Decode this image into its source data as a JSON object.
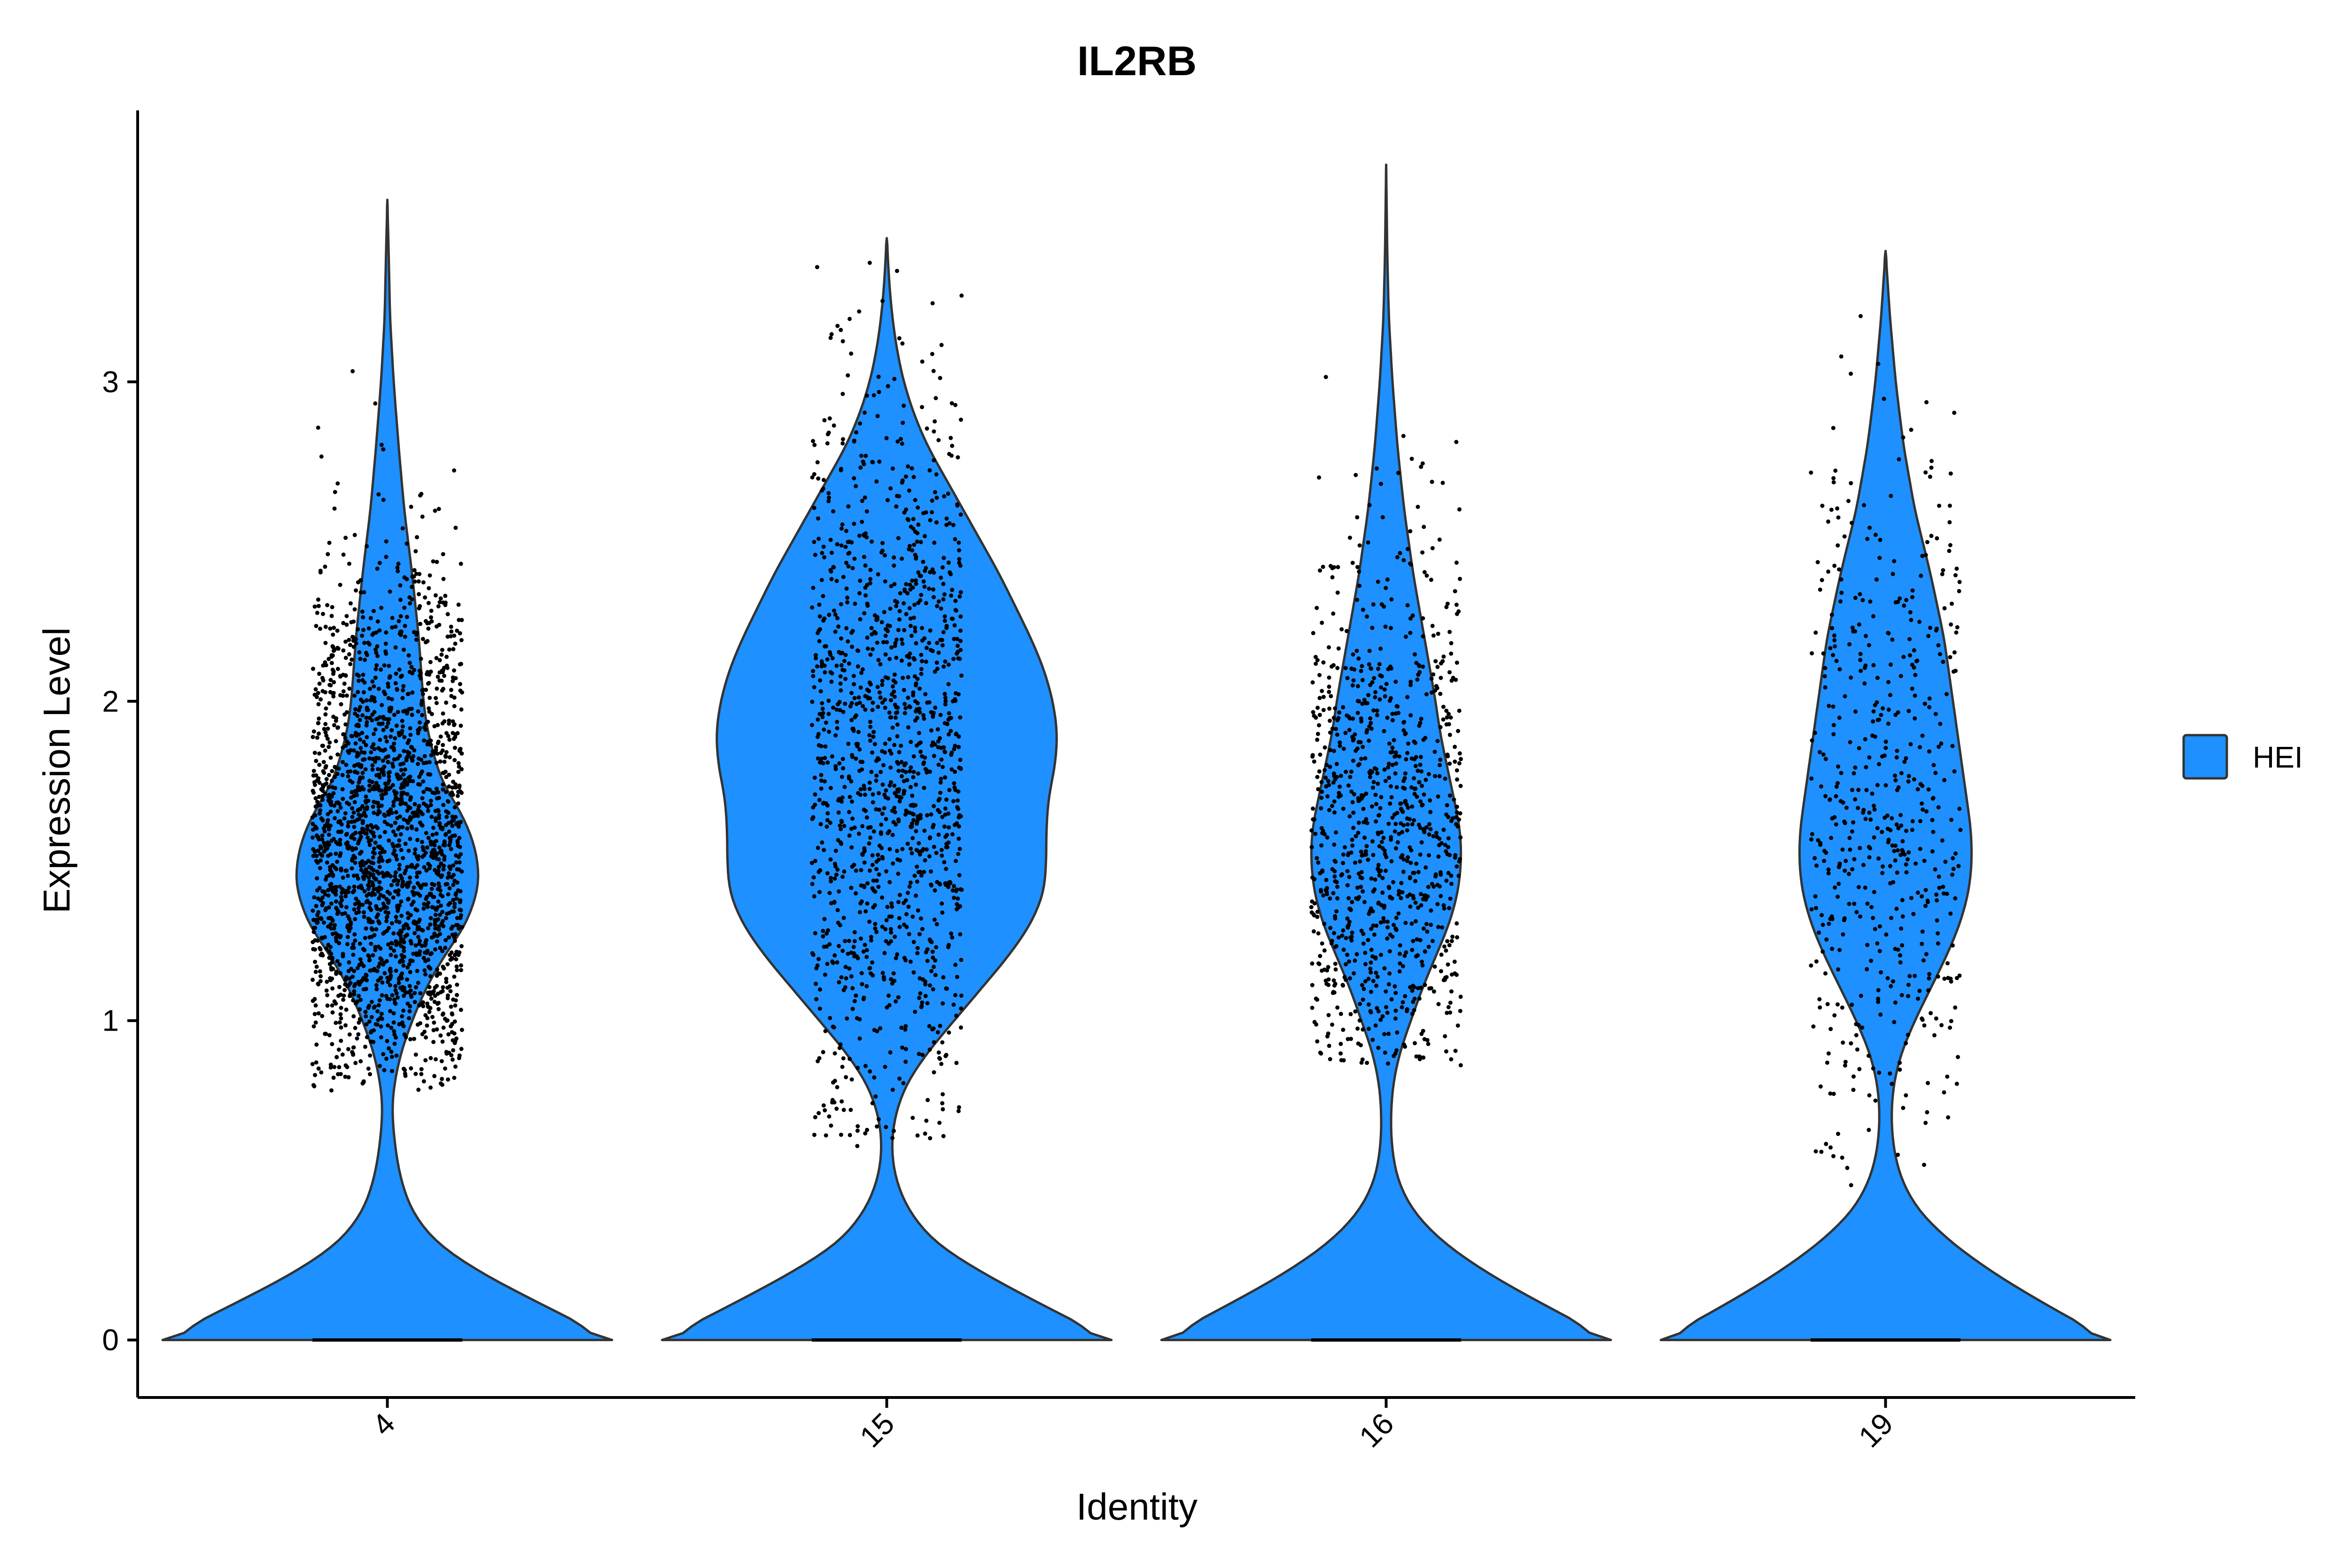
{
  "chart_data": {
    "type": "violin",
    "title": "IL2RB",
    "xlabel": "Identity",
    "ylabel": "Expression Level",
    "categories": [
      "4",
      "15",
      "16",
      "19"
    ],
    "yticks": [
      0,
      1,
      2,
      3
    ],
    "ylim": [
      -0.18,
      3.85
    ],
    "legend": {
      "placement": "right",
      "entries": [
        {
          "label": "HEI",
          "color": "#1E90FF"
        }
      ]
    },
    "fill_color": "#1E90FF",
    "grid": false,
    "x_tick_rotation": -45,
    "series": [
      {
        "category": "4",
        "max": 3.57,
        "density_profile": [
          [
            0,
            1.0
          ],
          [
            0.1,
            0.72
          ],
          [
            0.2,
            0.44
          ],
          [
            0.3,
            0.22
          ],
          [
            0.4,
            0.11
          ],
          [
            0.5,
            0.06
          ],
          [
            0.6,
            0.035
          ],
          [
            0.72,
            0.02
          ],
          [
            0.8,
            0.03
          ],
          [
            0.9,
            0.06
          ],
          [
            1.0,
            0.11
          ],
          [
            1.1,
            0.17
          ],
          [
            1.2,
            0.25
          ],
          [
            1.3,
            0.35
          ],
          [
            1.4,
            0.4
          ],
          [
            1.45,
            0.41
          ],
          [
            1.55,
            0.39
          ],
          [
            1.65,
            0.33
          ],
          [
            1.75,
            0.24
          ],
          [
            1.9,
            0.18
          ],
          [
            2.0,
            0.16
          ],
          [
            2.2,
            0.14
          ],
          [
            2.4,
            0.11
          ],
          [
            2.6,
            0.075
          ],
          [
            2.8,
            0.05
          ],
          [
            3.0,
            0.028
          ],
          [
            3.2,
            0.012
          ],
          [
            3.4,
            0.006
          ],
          [
            3.57,
            0.0
          ]
        ],
        "jitter_points": {
          "count": 2200,
          "range": [
            0.78,
            3.4
          ],
          "mode": 1.5,
          "spread": 0.45,
          "zero_count": 1
        }
      },
      {
        "category": "15",
        "max": 3.45,
        "density_profile": [
          [
            0,
            1.0
          ],
          [
            0.1,
            0.72
          ],
          [
            0.2,
            0.45
          ],
          [
            0.3,
            0.22
          ],
          [
            0.4,
            0.1
          ],
          [
            0.5,
            0.04
          ],
          [
            0.6,
            0.02
          ],
          [
            0.7,
            0.035
          ],
          [
            0.8,
            0.085
          ],
          [
            0.9,
            0.18
          ],
          [
            1.0,
            0.3
          ],
          [
            1.1,
            0.42
          ],
          [
            1.2,
            0.54
          ],
          [
            1.3,
            0.64
          ],
          [
            1.4,
            0.7
          ],
          [
            1.5,
            0.71
          ],
          [
            1.6,
            0.71
          ],
          [
            1.7,
            0.72
          ],
          [
            1.8,
            0.75
          ],
          [
            1.9,
            0.76
          ],
          [
            2.0,
            0.74
          ],
          [
            2.1,
            0.7
          ],
          [
            2.2,
            0.64
          ],
          [
            2.3,
            0.57
          ],
          [
            2.4,
            0.5
          ],
          [
            2.5,
            0.42
          ],
          [
            2.6,
            0.34
          ],
          [
            2.7,
            0.26
          ],
          [
            2.8,
            0.18
          ],
          [
            2.9,
            0.12
          ],
          [
            3.0,
            0.075
          ],
          [
            3.1,
            0.045
          ],
          [
            3.2,
            0.025
          ],
          [
            3.3,
            0.012
          ],
          [
            3.45,
            0.0
          ]
        ],
        "jitter_points": {
          "count": 1300,
          "range": [
            0.6,
            3.43
          ],
          "mode": 1.8,
          "spread": 0.6,
          "zero_count": 1
        }
      },
      {
        "category": "16",
        "max": 3.68,
        "density_profile": [
          [
            0,
            1.0
          ],
          [
            0.1,
            0.73
          ],
          [
            0.2,
            0.47
          ],
          [
            0.3,
            0.26
          ],
          [
            0.4,
            0.12
          ],
          [
            0.5,
            0.05
          ],
          [
            0.6,
            0.025
          ],
          [
            0.7,
            0.02
          ],
          [
            0.8,
            0.03
          ],
          [
            0.9,
            0.06
          ],
          [
            1.0,
            0.11
          ],
          [
            1.1,
            0.16
          ],
          [
            1.2,
            0.22
          ],
          [
            1.3,
            0.28
          ],
          [
            1.4,
            0.32
          ],
          [
            1.5,
            0.335
          ],
          [
            1.6,
            0.33
          ],
          [
            1.7,
            0.3
          ],
          [
            1.8,
            0.27
          ],
          [
            1.9,
            0.24
          ],
          [
            2.0,
            0.22
          ],
          [
            2.1,
            0.195
          ],
          [
            2.2,
            0.17
          ],
          [
            2.4,
            0.12
          ],
          [
            2.6,
            0.08
          ],
          [
            2.8,
            0.05
          ],
          [
            3.0,
            0.028
          ],
          [
            3.2,
            0.012
          ],
          [
            3.4,
            0.005
          ],
          [
            3.68,
            0.0
          ]
        ],
        "jitter_points": {
          "count": 950,
          "range": [
            0.86,
            3.66
          ],
          "mode": 1.55,
          "spread": 0.5,
          "zero_count": 1
        }
      },
      {
        "category": "19",
        "max": 3.41,
        "density_profile": [
          [
            0,
            1.0
          ],
          [
            0.1,
            0.74
          ],
          [
            0.2,
            0.5
          ],
          [
            0.3,
            0.3
          ],
          [
            0.4,
            0.15
          ],
          [
            0.5,
            0.07
          ],
          [
            0.6,
            0.035
          ],
          [
            0.7,
            0.025
          ],
          [
            0.8,
            0.035
          ],
          [
            0.9,
            0.07
          ],
          [
            1.0,
            0.13
          ],
          [
            1.1,
            0.2
          ],
          [
            1.2,
            0.27
          ],
          [
            1.3,
            0.33
          ],
          [
            1.4,
            0.37
          ],
          [
            1.5,
            0.385
          ],
          [
            1.6,
            0.38
          ],
          [
            1.7,
            0.36
          ],
          [
            1.8,
            0.34
          ],
          [
            1.9,
            0.32
          ],
          [
            2.0,
            0.3
          ],
          [
            2.2,
            0.26
          ],
          [
            2.4,
            0.2
          ],
          [
            2.6,
            0.13
          ],
          [
            2.8,
            0.08
          ],
          [
            3.0,
            0.045
          ],
          [
            3.2,
            0.02
          ],
          [
            3.41,
            0.0
          ]
        ],
        "jitter_points": {
          "count": 520,
          "range": [
            0.48,
            3.41
          ],
          "mode": 1.7,
          "spread": 0.55,
          "zero_count": 1
        }
      }
    ]
  }
}
